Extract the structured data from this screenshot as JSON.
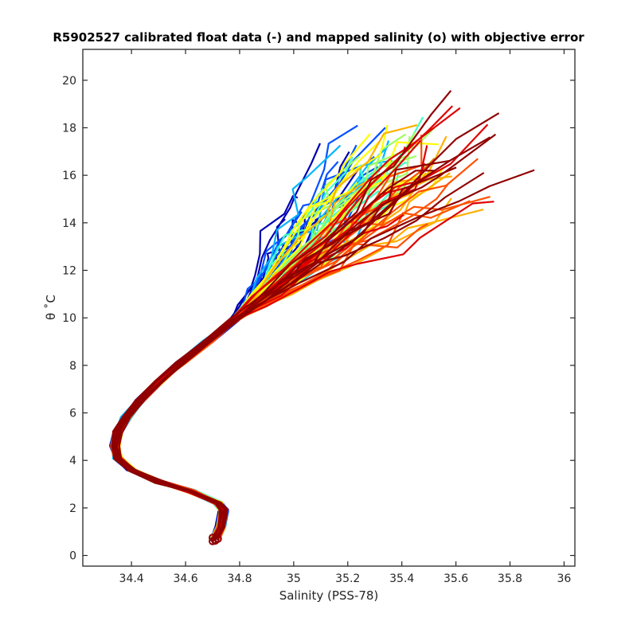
{
  "chart_data": {
    "type": "line",
    "title": "R5902527 calibrated float data (-) and mapped salinity (o) with objective error",
    "xlabel": "Salinity (PSS-78)",
    "ylabel": "θ ˚C",
    "xlim": [
      34.22,
      36.04
    ],
    "ylim": [
      -0.45,
      21.3
    ],
    "x_ticks": [
      34.4,
      34.6,
      34.8,
      35,
      35.2,
      35.4,
      35.6,
      35.8,
      36
    ],
    "x_tick_labels": [
      "34.4",
      "34.6",
      "34.8",
      "35",
      "35.2",
      "35.4",
      "35.6",
      "35.8",
      "36"
    ],
    "y_ticks": [
      0,
      2,
      4,
      6,
      8,
      10,
      12,
      14,
      16,
      18,
      20
    ],
    "y_tick_labels": [
      "0",
      "2",
      "4",
      "6",
      "8",
      "10",
      "12",
      "14",
      "16",
      "18",
      "20"
    ],
    "grid": false,
    "legend": "none",
    "colormap": [
      "#0000b4",
      "#0050ff",
      "#00b4ff",
      "#40ffc0",
      "#a0ff60",
      "#ffff00",
      "#ffb000",
      "#ff5000",
      "#e00000",
      "#900000"
    ],
    "common_profile": {
      "x": [
        34.71,
        34.73,
        34.74,
        34.72,
        34.62,
        34.5,
        34.4,
        34.35,
        34.34,
        34.35,
        34.38,
        34.43,
        34.5,
        34.58,
        34.68,
        34.78,
        34.9,
        35.03,
        35.15,
        35.3,
        35.45
      ],
      "y": [
        0.7,
        1.2,
        1.9,
        2.2,
        2.7,
        3.1,
        3.6,
        4.1,
        4.6,
        5.2,
        5.8,
        6.5,
        7.3,
        8.1,
        9.0,
        9.9,
        10.8,
        11.7,
        12.4,
        13.2,
        14.0
      ]
    },
    "mapped_points": {
      "x": [
        34.7,
        34.71,
        34.72,
        34.7,
        34.71
      ],
      "y": [
        0.6,
        0.65,
        0.7,
        0.75,
        0.62
      ]
    },
    "series_count": 90
  }
}
